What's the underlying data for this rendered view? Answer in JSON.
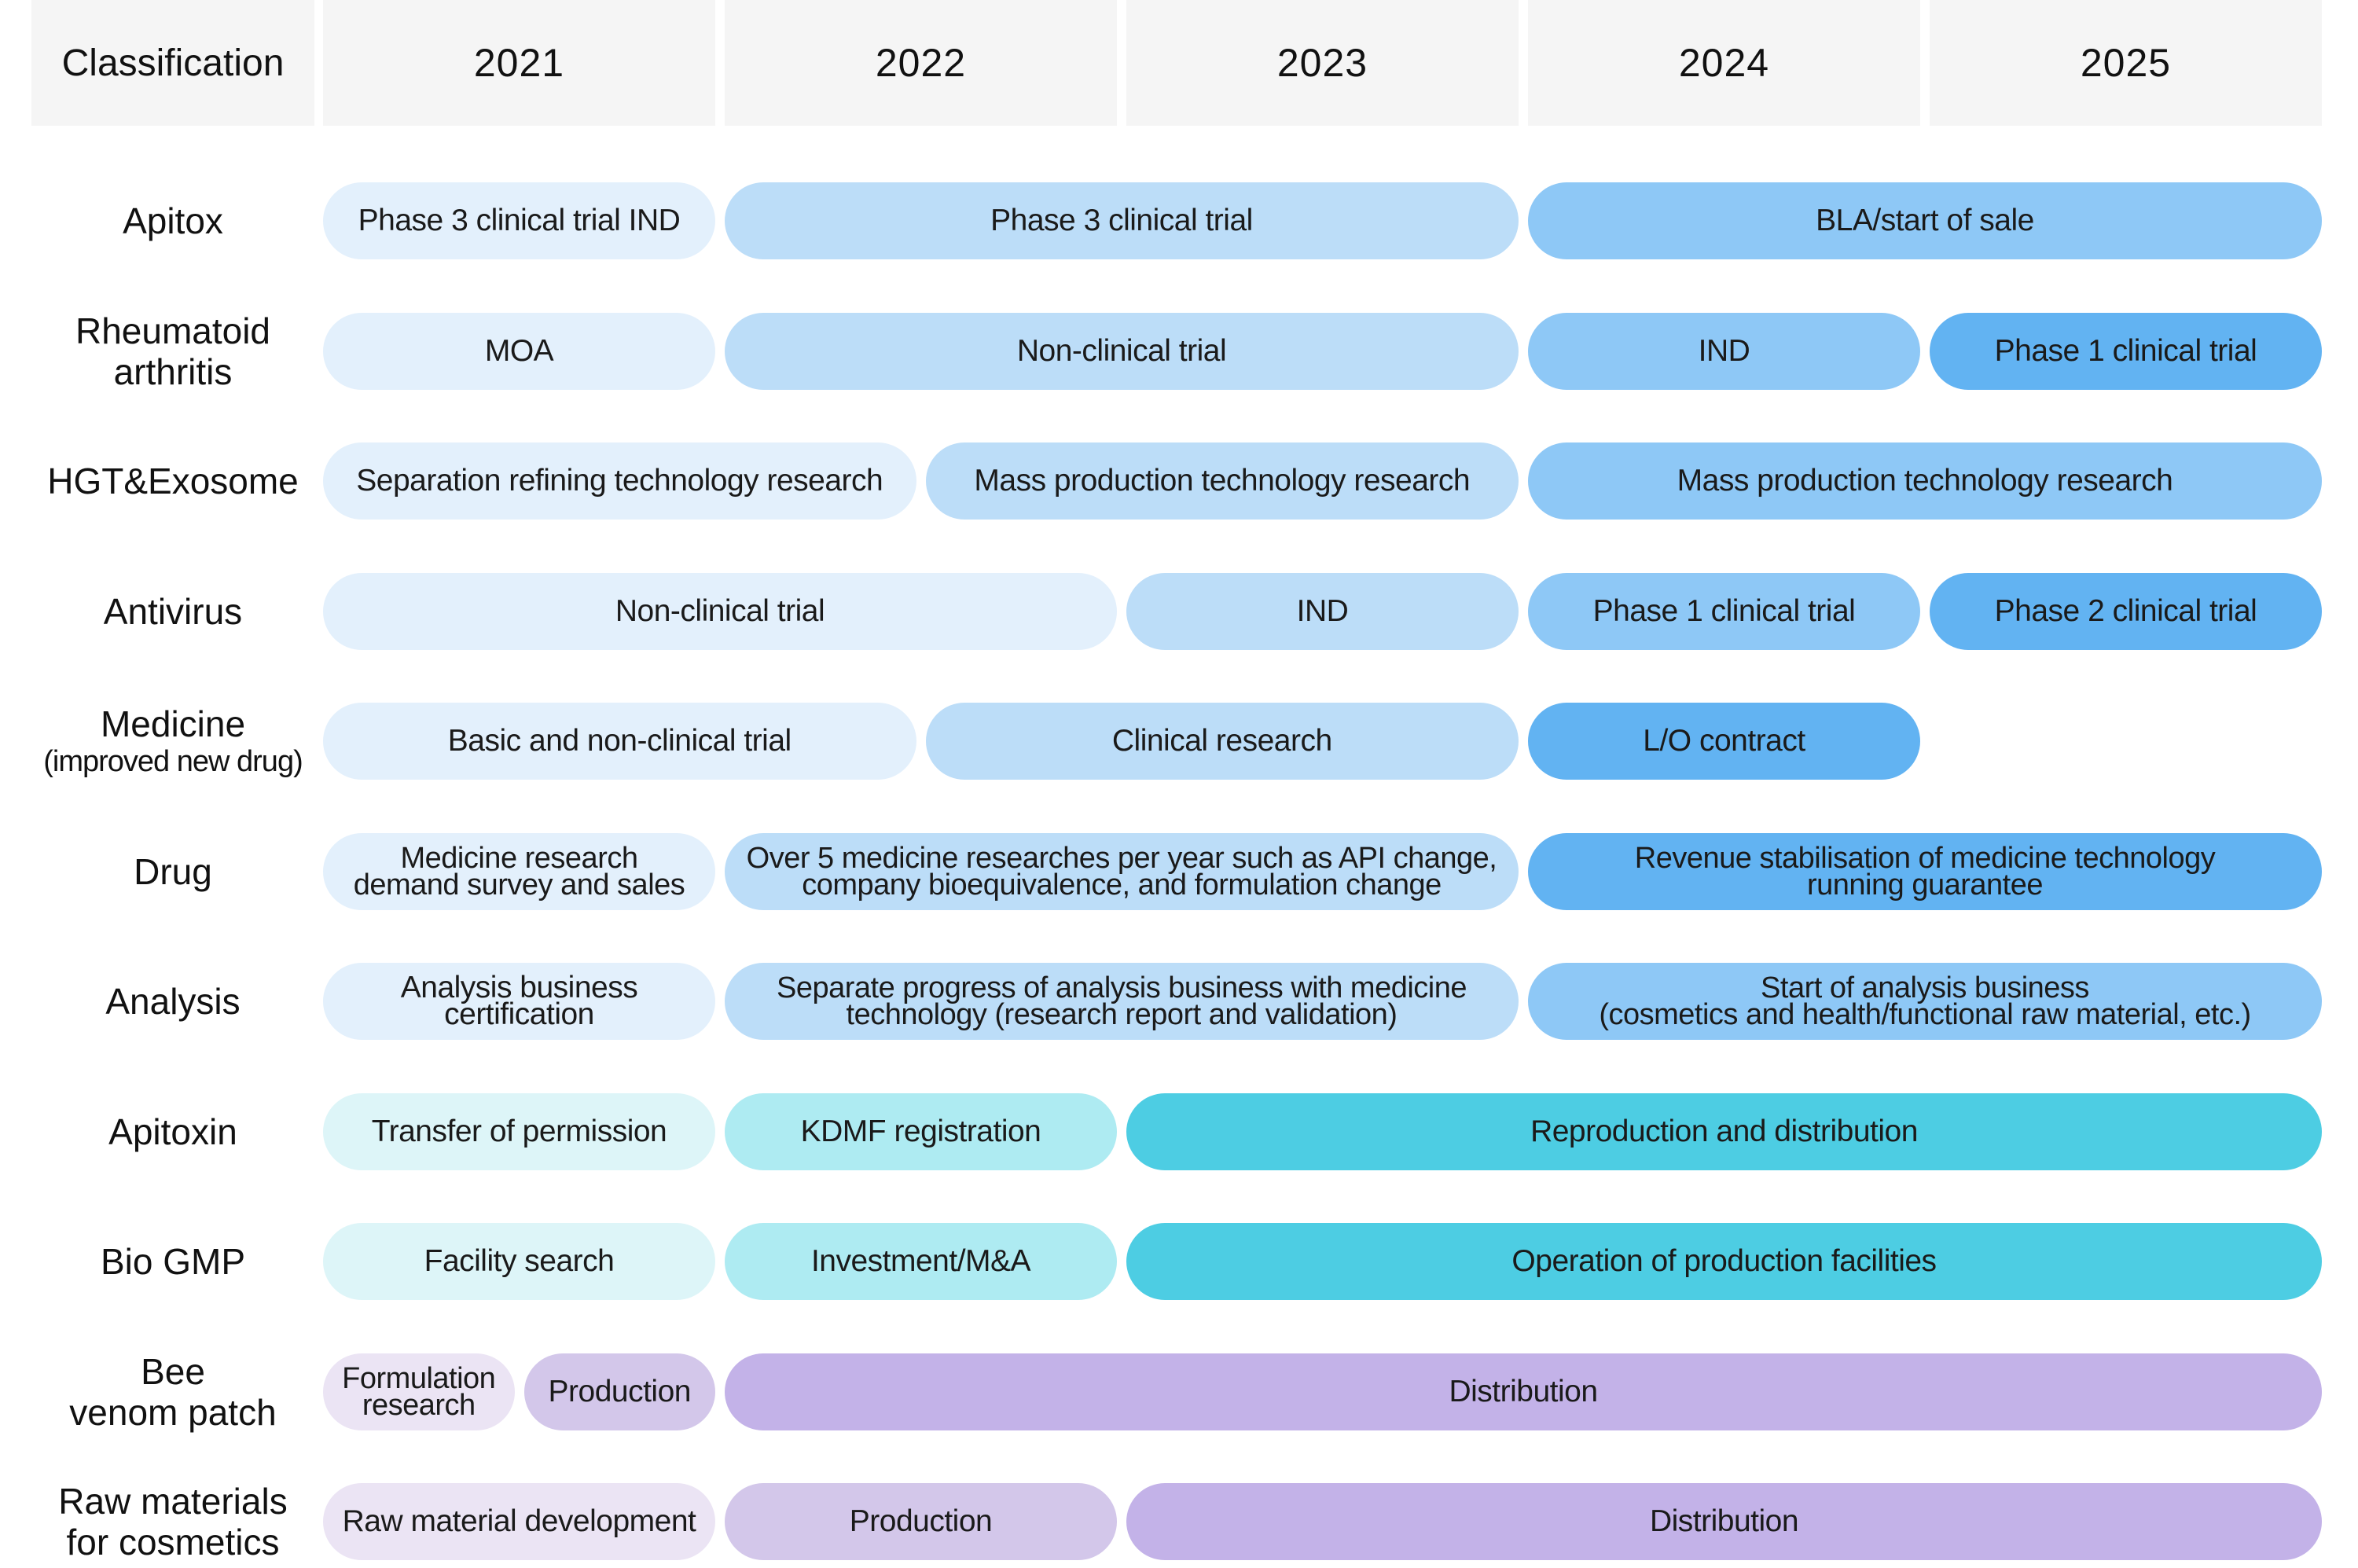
{
  "header": {
    "classification": "Classification",
    "years": [
      "2021",
      "2022",
      "2023",
      "2024",
      "2025"
    ]
  },
  "rows": [
    {
      "label": "Apitox",
      "sublabel": "",
      "bars": [
        {
          "text": "Phase 3 clinical trial IND",
          "start": 0,
          "end": 1,
          "color": "#e3f0fc"
        },
        {
          "text": "Phase 3 clinical trial",
          "start": 1,
          "end": 3,
          "color": "#bcddf8"
        },
        {
          "text": "BLA/start of sale",
          "start": 3,
          "end": 5,
          "color": "#8ec8f6"
        }
      ]
    },
    {
      "label": "Rheumatoid\narthritis",
      "sublabel": "",
      "bars": [
        {
          "text": "MOA",
          "start": 0,
          "end": 1,
          "color": "#e3f0fc"
        },
        {
          "text": "Non-clinical trial",
          "start": 1,
          "end": 3,
          "color": "#bcddf8"
        },
        {
          "text": "IND",
          "start": 3,
          "end": 4,
          "color": "#8ec8f6"
        },
        {
          "text": "Phase 1 clinical trial",
          "start": 4,
          "end": 5,
          "color": "#62b3f2"
        }
      ]
    },
    {
      "label": "HGT&Exosome",
      "sublabel": "",
      "bars": [
        {
          "text": "Separation refining technology research",
          "start": 0,
          "end": 1.5,
          "color": "#e3f0fc"
        },
        {
          "text": "Mass production technology research",
          "start": 1.5,
          "end": 3,
          "color": "#bcddf8"
        },
        {
          "text": "Mass production technology research",
          "start": 3,
          "end": 5,
          "color": "#8ec8f6"
        }
      ]
    },
    {
      "label": "Antivirus",
      "sublabel": "",
      "bars": [
        {
          "text": "Non-clinical trial",
          "start": 0,
          "end": 2,
          "color": "#e3f0fc"
        },
        {
          "text": "IND",
          "start": 2,
          "end": 3,
          "color": "#bcddf8"
        },
        {
          "text": "Phase 1 clinical trial",
          "start": 3,
          "end": 4,
          "color": "#8ec8f6"
        },
        {
          "text": "Phase 2 clinical trial",
          "start": 4,
          "end": 5,
          "color": "#62b3f2"
        }
      ]
    },
    {
      "label": "Medicine",
      "sublabel": "(improved new drug)",
      "bars": [
        {
          "text": "Basic and non-clinical trial",
          "start": 0,
          "end": 1.5,
          "color": "#e3f0fc"
        },
        {
          "text": "Clinical research",
          "start": 1.5,
          "end": 3,
          "color": "#bcddf8"
        },
        {
          "text": "L/O contract",
          "start": 3,
          "end": 4,
          "color": "#62b3f2"
        }
      ]
    },
    {
      "label": "Drug",
      "sublabel": "",
      "bars": [
        {
          "text": "Medicine research\ndemand survey and sales",
          "start": 0,
          "end": 1,
          "color": "#e3f0fc"
        },
        {
          "text": "Over 5 medicine researches per year such as API change,\ncompany bioequivalence, and formulation change",
          "start": 1,
          "end": 3,
          "color": "#bcddf8"
        },
        {
          "text": "Revenue stabilisation of medicine technology\nrunning guarantee",
          "start": 3,
          "end": 5,
          "color": "#62b3f2"
        }
      ]
    },
    {
      "label": "Analysis",
      "sublabel": "",
      "bars": [
        {
          "text": "Analysis business certification",
          "start": 0,
          "end": 1,
          "color": "#e3f0fc"
        },
        {
          "text": "Separate progress of analysis business with medicine\ntechnology (research report and validation)",
          "start": 1,
          "end": 3,
          "color": "#bcddf8"
        },
        {
          "text": "Start of analysis business\n(cosmetics and health/functional raw material, etc.)",
          "start": 3,
          "end": 5,
          "color": "#8ec8f6"
        }
      ]
    },
    {
      "label": "Apitoxin",
      "sublabel": "",
      "bars": [
        {
          "text": "Transfer of permission",
          "start": 0,
          "end": 1,
          "color": "#ddf5f8"
        },
        {
          "text": "KDMF registration",
          "start": 1,
          "end": 2,
          "color": "#aeebf2"
        },
        {
          "text": "Reproduction and distribution",
          "start": 2,
          "end": 5,
          "color": "#4dcde3"
        }
      ]
    },
    {
      "label": "Bio GMP",
      "sublabel": "",
      "bars": [
        {
          "text": "Facility search",
          "start": 0,
          "end": 1,
          "color": "#ddf5f8"
        },
        {
          "text": "Investment/M&A",
          "start": 1,
          "end": 2,
          "color": "#aeebf2"
        },
        {
          "text": "Operation of production facilities",
          "start": 2,
          "end": 5,
          "color": "#4dcde3"
        }
      ]
    },
    {
      "label": "Bee\nvenom patch",
      "sublabel": "",
      "bars": [
        {
          "text": "Formulation\nresearch",
          "start": 0,
          "end": 0.5,
          "color": "#ebe4f4"
        },
        {
          "text": "Production",
          "start": 0.5,
          "end": 1,
          "color": "#d3c7ea"
        },
        {
          "text": "Distribution",
          "start": 1,
          "end": 5,
          "color": "#c3b2e8"
        }
      ]
    },
    {
      "label": "Raw materials\nfor cosmetics",
      "sublabel": "",
      "bars": [
        {
          "text": "Raw material development",
          "start": 0,
          "end": 1,
          "color": "#ebe4f4"
        },
        {
          "text": "Production",
          "start": 1,
          "end": 2,
          "color": "#d3c7ea"
        },
        {
          "text": "Distribution",
          "start": 2,
          "end": 5,
          "color": "#c3b2e8"
        }
      ]
    }
  ]
}
